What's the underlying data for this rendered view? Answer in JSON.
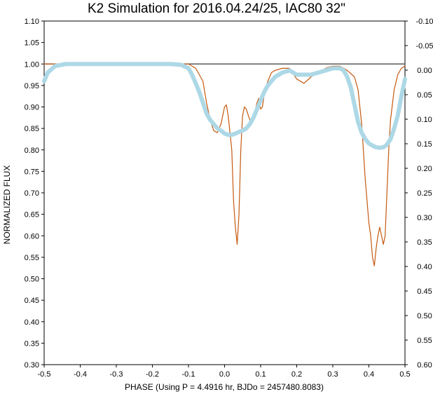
{
  "chart_data": {
    "type": "line",
    "title": "K2 Simulation for 2016.04.24/25,  IAC80 32\"",
    "xlabel": "PHASE (Using P = 4.4916 hr, BJDo = 2457480.8083)",
    "ylabel": "NORMALIZED FLUX",
    "xlim": [
      -0.5,
      0.5
    ],
    "ylim": [
      0.3,
      1.1
    ],
    "y2lim": [
      -0.1,
      0.6
    ],
    "y2_reversed": true,
    "x_ticks": [
      "-0.5",
      "-0.4",
      "-0.3",
      "-0.2",
      "-0.1",
      "0.0",
      "0.1",
      "0.2",
      "0.3",
      "0.4",
      "0.5"
    ],
    "y_ticks": [
      "0.30",
      "0.35",
      "0.40",
      "0.45",
      "0.50",
      "0.55",
      "0.60",
      "0.65",
      "0.70",
      "0.75",
      "0.80",
      "0.85",
      "0.90",
      "0.95",
      "1.00",
      "1.05",
      "1.10"
    ],
    "y2_ticks": [
      "-0.10",
      "-0.05",
      "0.00",
      "0.05",
      "0.10",
      "0.15",
      "0.20",
      "0.25",
      "0.30",
      "0.35",
      "0.40",
      "0.45",
      "0.50",
      "0.55",
      "0.60"
    ],
    "grid": false,
    "legend": "none",
    "reference_line": {
      "y": 1.0,
      "color": "#595959"
    },
    "series": [
      {
        "color": "#c55a11",
        "style": "thin",
        "x": [
          -0.5,
          -0.1,
          -0.08,
          -0.06,
          -0.05,
          -0.04,
          -0.03,
          -0.02,
          -0.01,
          0.0,
          0.005,
          0.01,
          0.02,
          0.025,
          0.03,
          0.035,
          0.04,
          0.045,
          0.05,
          0.055,
          0.06,
          0.07,
          0.08,
          0.09,
          0.095,
          0.1,
          0.105,
          0.11,
          0.12,
          0.13,
          0.14,
          0.16,
          0.18,
          0.2,
          0.22,
          0.24,
          0.26,
          0.28,
          0.3,
          0.32,
          0.34,
          0.36,
          0.37,
          0.38,
          0.39,
          0.4,
          0.405,
          0.41,
          0.415,
          0.42,
          0.425,
          0.43,
          0.435,
          0.44,
          0.445,
          0.45,
          0.455,
          0.46,
          0.47,
          0.48,
          0.49,
          0.5
        ],
        "y": [
          1.0,
          1.0,
          0.99,
          0.96,
          0.91,
          0.87,
          0.845,
          0.84,
          0.86,
          0.9,
          0.905,
          0.88,
          0.8,
          0.68,
          0.62,
          0.58,
          0.65,
          0.8,
          0.88,
          0.9,
          0.895,
          0.87,
          0.875,
          0.91,
          0.92,
          0.895,
          0.9,
          0.93,
          0.96,
          0.98,
          0.985,
          0.99,
          0.99,
          0.965,
          0.955,
          0.97,
          0.98,
          0.99,
          0.995,
          0.995,
          0.985,
          0.97,
          0.94,
          0.86,
          0.73,
          0.63,
          0.6,
          0.55,
          0.53,
          0.57,
          0.6,
          0.62,
          0.6,
          0.58,
          0.6,
          0.7,
          0.8,
          0.87,
          0.94,
          0.975,
          0.99,
          0.995
        ]
      },
      {
        "color": "#add8e6",
        "style": "thick",
        "x": [
          -0.5,
          -0.49,
          -0.47,
          -0.44,
          -0.3,
          -0.15,
          -0.12,
          -0.1,
          -0.09,
          -0.08,
          -0.07,
          -0.06,
          -0.05,
          -0.04,
          -0.03,
          -0.02,
          -0.01,
          0.0,
          0.01,
          0.02,
          0.03,
          0.04,
          0.05,
          0.06,
          0.07,
          0.08,
          0.09,
          0.1,
          0.11,
          0.12,
          0.14,
          0.16,
          0.18,
          0.2,
          0.22,
          0.24,
          0.26,
          0.28,
          0.3,
          0.32,
          0.33,
          0.34,
          0.35,
          0.36,
          0.37,
          0.38,
          0.39,
          0.4,
          0.41,
          0.42,
          0.43,
          0.44,
          0.45,
          0.46,
          0.47,
          0.48,
          0.49,
          0.5
        ],
        "y": [
          0.96,
          0.98,
          0.995,
          1.0,
          1.0,
          1.0,
          0.998,
          0.99,
          0.975,
          0.955,
          0.935,
          0.91,
          0.885,
          0.87,
          0.86,
          0.85,
          0.845,
          0.838,
          0.835,
          0.835,
          0.838,
          0.842,
          0.845,
          0.85,
          0.86,
          0.875,
          0.895,
          0.915,
          0.935,
          0.95,
          0.97,
          0.98,
          0.985,
          0.975,
          0.975,
          0.975,
          0.98,
          0.985,
          0.99,
          0.99,
          0.985,
          0.97,
          0.945,
          0.905,
          0.865,
          0.84,
          0.825,
          0.815,
          0.81,
          0.806,
          0.805,
          0.806,
          0.812,
          0.825,
          0.85,
          0.88,
          0.925,
          0.965
        ]
      }
    ]
  }
}
